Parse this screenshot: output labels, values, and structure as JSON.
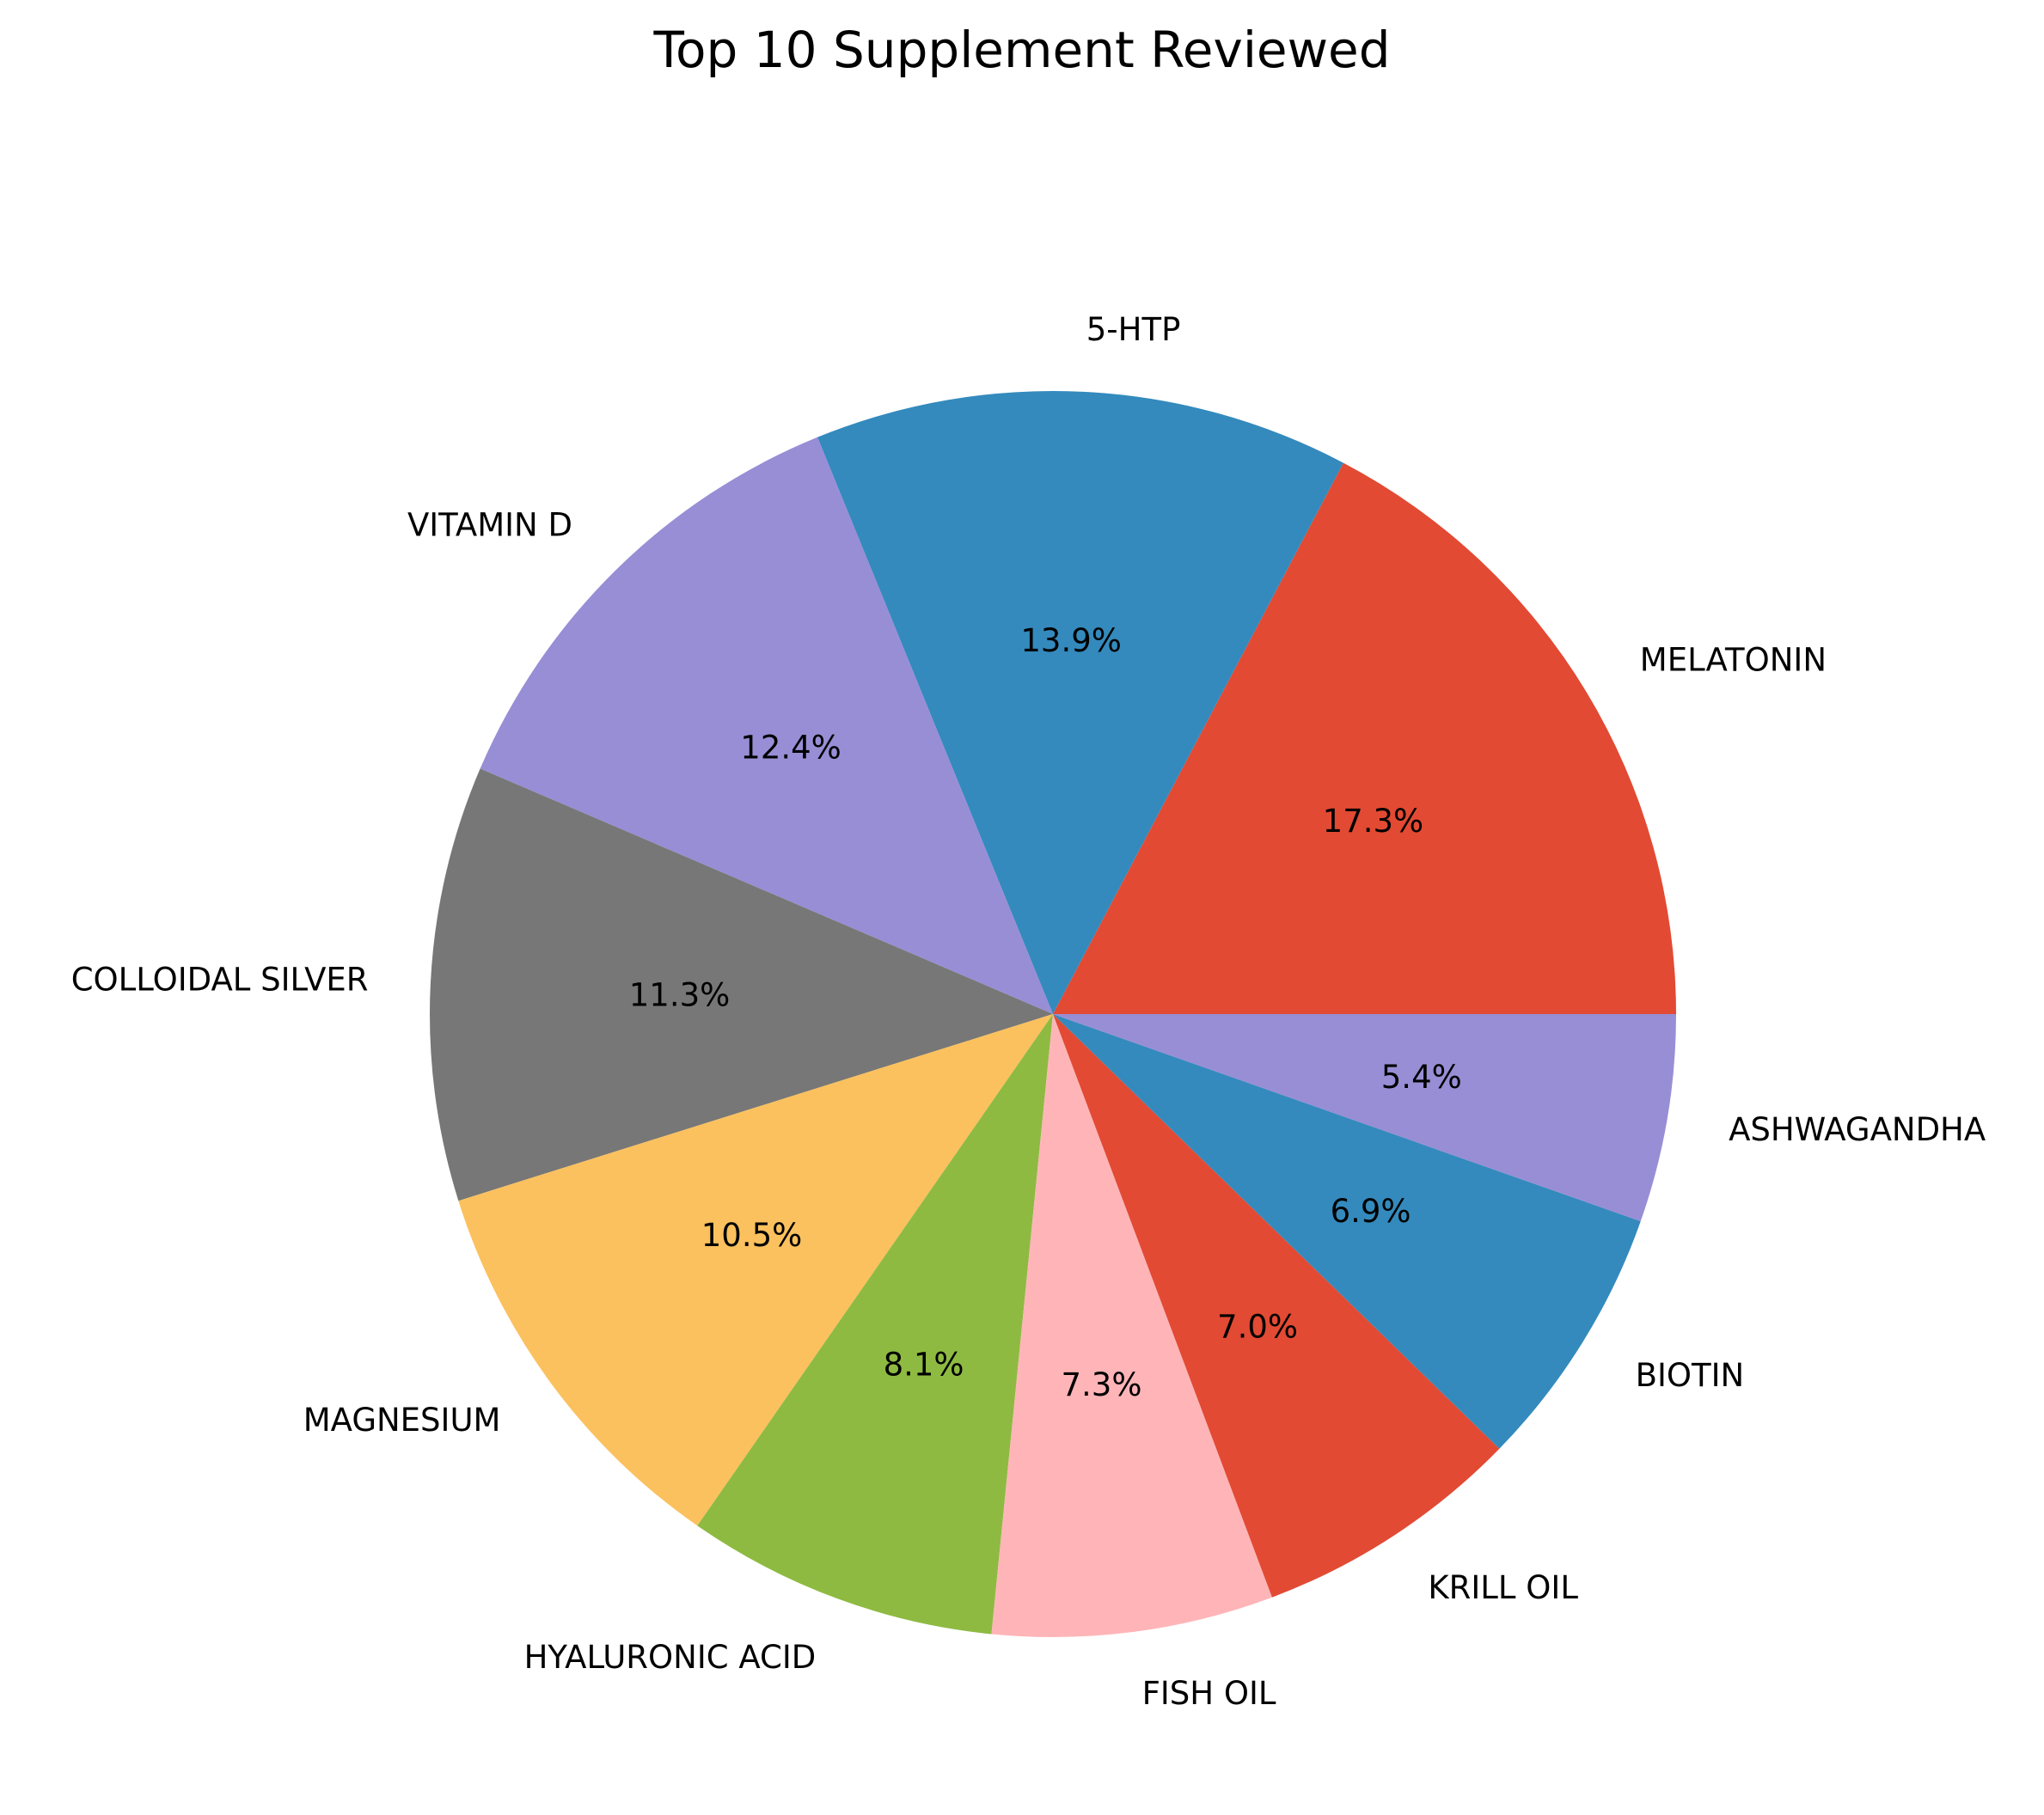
{
  "chart_data": {
    "type": "pie",
    "title": "Top 10 Supplement Reviewed",
    "categories": [
      "MELATONIN",
      "5-HTP",
      "VITAMIN D",
      "COLLOIDAL SILVER",
      "MAGNESIUM",
      "HYALURONIC ACID",
      "FISH OIL",
      "KRILL OIL",
      "BIOTIN",
      "ASHWAGANDHA"
    ],
    "values": [
      17.3,
      13.9,
      12.4,
      11.3,
      10.5,
      8.1,
      7.3,
      7.0,
      6.9,
      5.4
    ],
    "value_labels": [
      "17.3%",
      "13.9%",
      "12.4%",
      "11.3%",
      "10.5%",
      "8.1%",
      "7.3%",
      "7.0%",
      "6.9%",
      "5.4%"
    ],
    "colors": [
      "#E24A33",
      "#348ABD",
      "#988ED5",
      "#777777",
      "#FBC15E",
      "#8EBA42",
      "#FFB5B8",
      "#E24A33",
      "#348ABD",
      "#988ED5"
    ],
    "start_angle_deg": 0,
    "direction": "counterclockwise"
  }
}
